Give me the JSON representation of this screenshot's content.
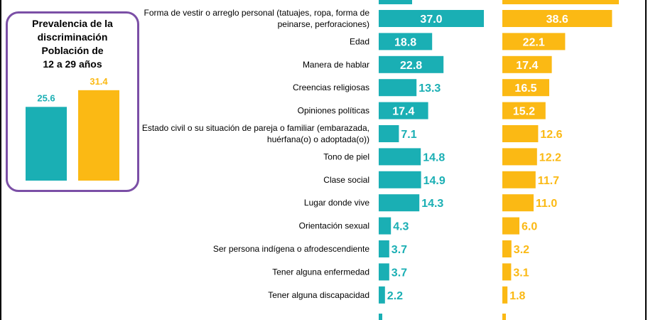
{
  "colors": {
    "teal": "#1aafb4",
    "gold": "#fbb914",
    "purple": "#7b4fa6"
  },
  "prevalence_box": {
    "title_lines": [
      "Prevalencia de la",
      "discriminación",
      "Población de",
      "12 a 29 años"
    ]
  },
  "chart_data": [
    {
      "type": "bar",
      "orientation": "horizontal",
      "label_lines": [
        [
          "Forma de vestir o arreglo personal (tatuajes, ropa, forma de",
          "peinarse, perforaciones)"
        ],
        [
          "Edad"
        ],
        [
          "Manera de hablar"
        ],
        [
          "Creencias religiosas"
        ],
        [
          "Opiniones políticas"
        ],
        [
          "Estado civil o su situación de pareja o familiar (embarazada,",
          "huérfana(o) o adoptada(o))"
        ],
        [
          "Tono de piel"
        ],
        [
          "Clase social"
        ],
        [
          "Lugar donde vive"
        ],
        [
          "Orientación sexual"
        ],
        [
          "Ser persona indígena o afrodescendiente"
        ],
        [
          "Tener alguna enfermedad"
        ],
        [
          "Tener alguna discapacidad"
        ]
      ],
      "series": [
        {
          "color": "#1aafb4",
          "values": [
            37.0,
            18.8,
            22.8,
            13.3,
            17.4,
            7.1,
            14.8,
            14.9,
            14.3,
            4.3,
            3.7,
            3.7,
            2.2
          ]
        },
        {
          "color": "#fbb914",
          "values": [
            38.6,
            22.1,
            17.4,
            16.5,
            15.2,
            12.6,
            12.2,
            11.7,
            11.0,
            6.0,
            3.2,
            3.1,
            1.8
          ]
        }
      ],
      "value_labels": [
        [
          "37.0",
          "18.8",
          "22.8",
          "13.3",
          "17.4",
          "7.1",
          "14.8",
          "14.9",
          "14.3",
          "4.3",
          "3.7",
          "3.7",
          "2.2"
        ],
        [
          "38.6",
          "22.1",
          "17.4",
          "16.5",
          "15.2",
          "12.6",
          "12.2",
          "11.7",
          "11.0",
          "6.0",
          "3.2",
          "3.1",
          "1.8"
        ]
      ]
    },
    {
      "type": "bar",
      "orientation": "vertical",
      "series": [
        {
          "color": "#1aafb4",
          "value": 25.6,
          "label": "25.6"
        },
        {
          "color": "#fbb914",
          "value": 31.4,
          "label": "31.4"
        }
      ]
    }
  ]
}
